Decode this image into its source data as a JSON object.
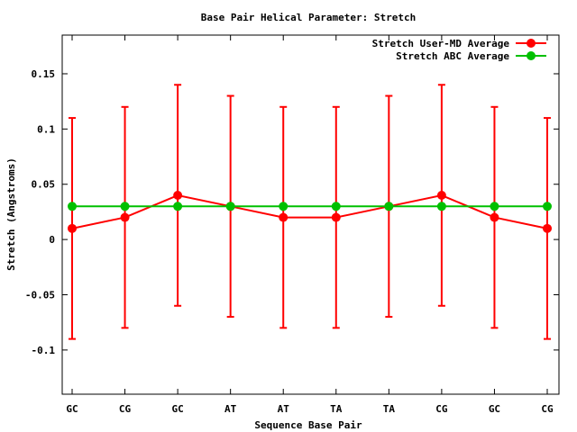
{
  "chart_data": {
    "type": "line",
    "title": "Base Pair Helical Parameter: Stretch",
    "xlabel": "Sequence Base Pair",
    "ylabel": "Stretch (Angstroms)",
    "categories": [
      "GC",
      "CG",
      "GC",
      "AT",
      "AT",
      "TA",
      "TA",
      "CG",
      "GC",
      "CG"
    ],
    "ylim": [
      -0.14,
      0.185
    ],
    "yticks": [
      {
        "value": 0.15,
        "label": "0.15"
      },
      {
        "value": 0.1,
        "label": "0.1"
      },
      {
        "value": 0.05,
        "label": "0.05"
      },
      {
        "value": 0,
        "label": "0"
      },
      {
        "value": -0.05,
        "label": "-0.05"
      },
      {
        "value": -0.1,
        "label": "-0.1"
      }
    ],
    "grid": false,
    "legend_position": "top-right",
    "series": [
      {
        "name": "Stretch User-MD Average",
        "color": "#ff0000",
        "values": [
          0.01,
          0.02,
          0.04,
          0.03,
          0.02,
          0.02,
          0.03,
          0.04,
          0.02,
          0.01
        ],
        "error": [
          0.1,
          0.1,
          0.1,
          0.1,
          0.1,
          0.1,
          0.1,
          0.1,
          0.1,
          0.1
        ]
      },
      {
        "name": "Stretch ABC Average",
        "color": "#00c000",
        "values": [
          0.03,
          0.03,
          0.03,
          0.03,
          0.03,
          0.03,
          0.03,
          0.03,
          0.03,
          0.03
        ]
      }
    ]
  }
}
